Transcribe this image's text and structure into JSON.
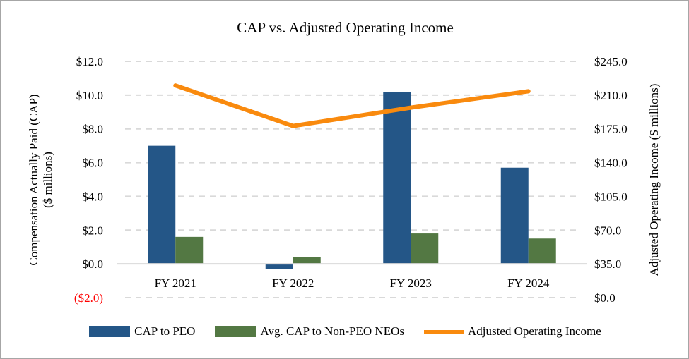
{
  "chart_data": {
    "type": "bar",
    "title": "CAP vs. Adjusted Operating Income",
    "categories": [
      "FY 2021",
      "FY 2022",
      "FY 2023",
      "FY 2024"
    ],
    "ylabel": "Compensation Actually Paid (CAP)\n($ millions)",
    "ylabel_line1": "Compensation Actually Paid (CAP)",
    "ylabel_line2": "($ millions)",
    "y2label": "Adjusted Operating Income ($ millions)",
    "ylim": [
      -2,
      12
    ],
    "y2lim": [
      0,
      245
    ],
    "yticks": [
      "($2.0)",
      "$0.0",
      "$2.0",
      "$4.0",
      "$6.0",
      "$8.0",
      "$10.0",
      "$12.0"
    ],
    "yticks_values": [
      -2,
      0,
      2,
      4,
      6,
      8,
      10,
      12
    ],
    "y2ticks": [
      "$0.0",
      "$35.0",
      "$70.0",
      "$105.0",
      "$140.0",
      "$175.0",
      "$210.0",
      "$245.0"
    ],
    "y2ticks_values": [
      0,
      35,
      70,
      105,
      140,
      175,
      210,
      245
    ],
    "grid": true,
    "legend": "bottom",
    "series": [
      {
        "name": "CAP to PEO",
        "type": "bar",
        "axis": "left",
        "color": "#245687",
        "values": [
          7.0,
          -0.3,
          10.2,
          5.7
        ]
      },
      {
        "name": "Avg. CAP to Non-PEO NEOs",
        "type": "bar",
        "axis": "left",
        "color": "#537843",
        "values": [
          1.6,
          0.4,
          1.8,
          1.5
        ]
      },
      {
        "name": "Adjusted Operating Income",
        "type": "line",
        "axis": "right",
        "color": "#f98a0e",
        "values": [
          220,
          178,
          197,
          214
        ]
      }
    ],
    "negative_tick_color": "#ff0000"
  }
}
